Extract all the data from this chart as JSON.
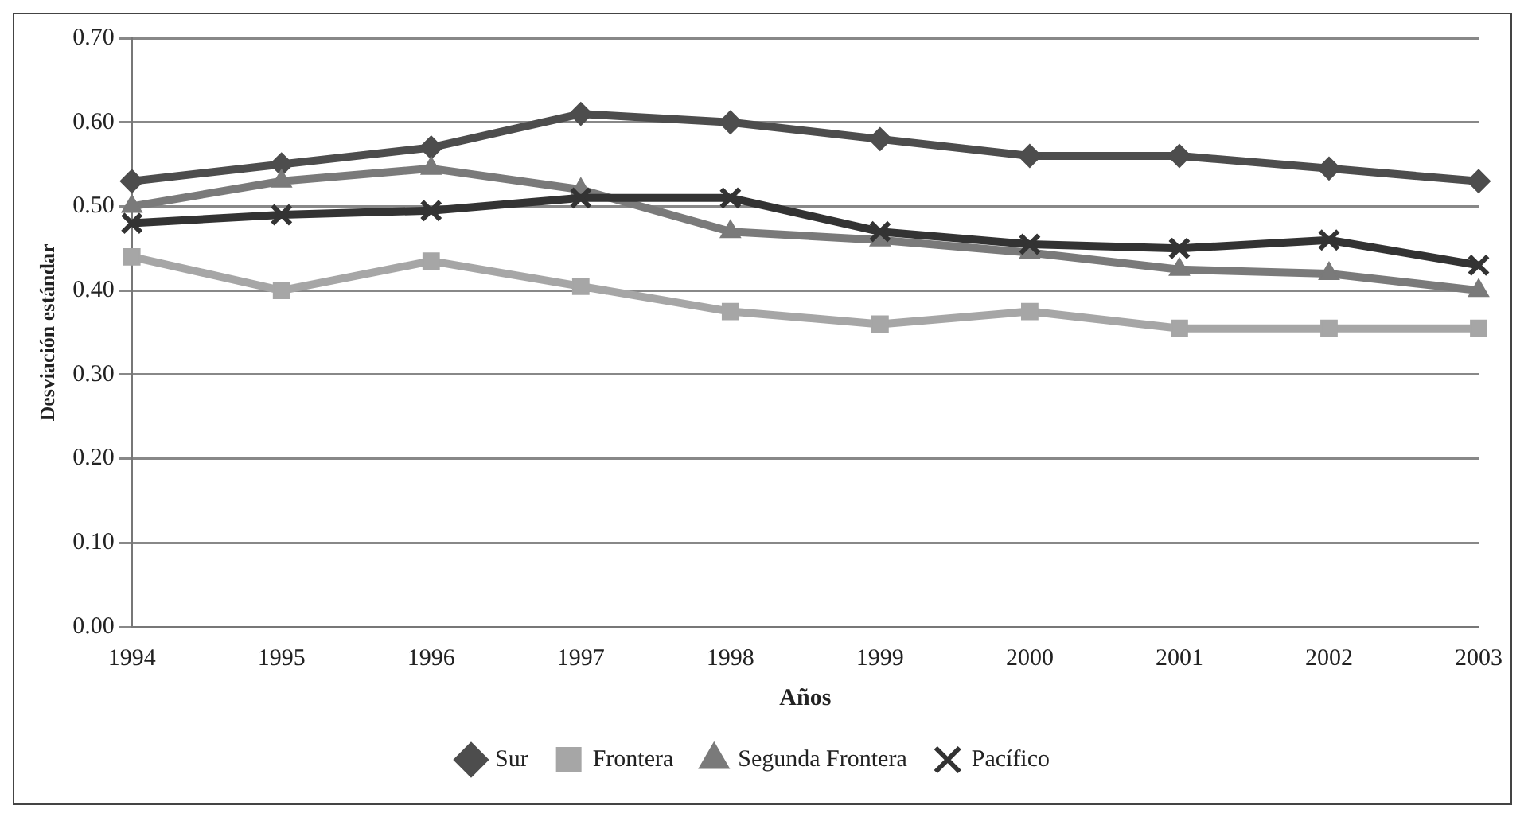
{
  "chart_data": {
    "type": "line",
    "xlabel": "Años",
    "ylabel": "Desviación estándar",
    "categories": [
      "1994",
      "1995",
      "1996",
      "1997",
      "1998",
      "1999",
      "2000",
      "2001",
      "2002",
      "2003"
    ],
    "series": [
      {
        "name": "Sur",
        "color": "#4d4d4d",
        "marker": "diamond",
        "values": [
          0.53,
          0.55,
          0.57,
          0.61,
          0.6,
          0.58,
          0.56,
          0.56,
          0.545,
          0.53
        ]
      },
      {
        "name": "Frontera",
        "color": "#a6a6a6",
        "marker": "square",
        "values": [
          0.44,
          0.4,
          0.435,
          0.405,
          0.375,
          0.36,
          0.375,
          0.355,
          0.355,
          0.355
        ]
      },
      {
        "name": "Segunda Frontera",
        "color": "#7a7a7a",
        "marker": "triangle",
        "values": [
          0.5,
          0.53,
          0.545,
          0.52,
          0.47,
          0.46,
          0.445,
          0.425,
          0.42,
          0.4
        ]
      },
      {
        "name": "Pacífico",
        "color": "#333333",
        "marker": "cross",
        "values": [
          0.48,
          0.49,
          0.495,
          0.51,
          0.51,
          0.47,
          0.455,
          0.45,
          0.46,
          0.43
        ]
      }
    ],
    "ylim": [
      0,
      0.7
    ],
    "yticks": [
      {
        "value": 0,
        "label": "0.00"
      },
      {
        "value": 0.1,
        "label": "0.10"
      },
      {
        "value": 0.2,
        "label": "0.20"
      },
      {
        "value": 0.3,
        "label": "0.30"
      },
      {
        "value": 0.4,
        "label": "0.40"
      },
      {
        "value": 0.5,
        "label": "0.50"
      },
      {
        "value": 0.6,
        "label": "0.60"
      },
      {
        "value": 0.7,
        "label": "0.70"
      }
    ],
    "grid": "y",
    "legend": "bottom",
    "line_style": "solid"
  }
}
